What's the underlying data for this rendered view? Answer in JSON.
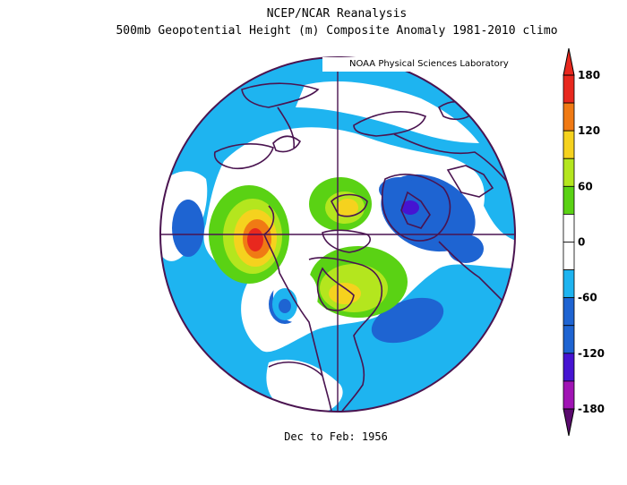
{
  "title_line1": "NCEP/NCAR Reanalysis",
  "title_line2": "500mb Geopotential Height (m) Composite Anomaly 1981-2010 climo",
  "credit": "NOAA Physical Sciences Laboratory",
  "footer": "Dec to Feb: 1956",
  "colorbar": {
    "labels": [
      "180",
      "120",
      "60",
      "0",
      "-60",
      "-120",
      "-180"
    ],
    "levels": [
      {
        "from": 150,
        "to": 180,
        "color": "#e8281e"
      },
      {
        "from": 120,
        "to": 150,
        "color": "#f07a14"
      },
      {
        "from": 90,
        "to": 120,
        "color": "#f5d21e"
      },
      {
        "from": 60,
        "to": 90,
        "color": "#b4e61e"
      },
      {
        "from": 30,
        "to": 60,
        "color": "#5ad214"
      },
      {
        "from": 0,
        "to": 30,
        "color": "#ffffff"
      },
      {
        "from": -30,
        "to": 0,
        "color": "#ffffff"
      },
      {
        "from": -60,
        "to": -30,
        "color": "#1eb4f0"
      },
      {
        "from": -90,
        "to": -60,
        "color": "#1e64d2"
      },
      {
        "from": -120,
        "to": -90,
        "color": "#1e64d2"
      },
      {
        "from": -150,
        "to": -120,
        "color": "#4614d2"
      },
      {
        "from": -180,
        "to": -150,
        "color": "#a014b4"
      }
    ],
    "top_arrow_color": "#e8281e",
    "bottom_arrow_color": "#5a0a6e"
  },
  "map": {
    "projection": "north polar stereographic",
    "background_color": "#1eb4f0",
    "border_color": "#4a1450"
  }
}
